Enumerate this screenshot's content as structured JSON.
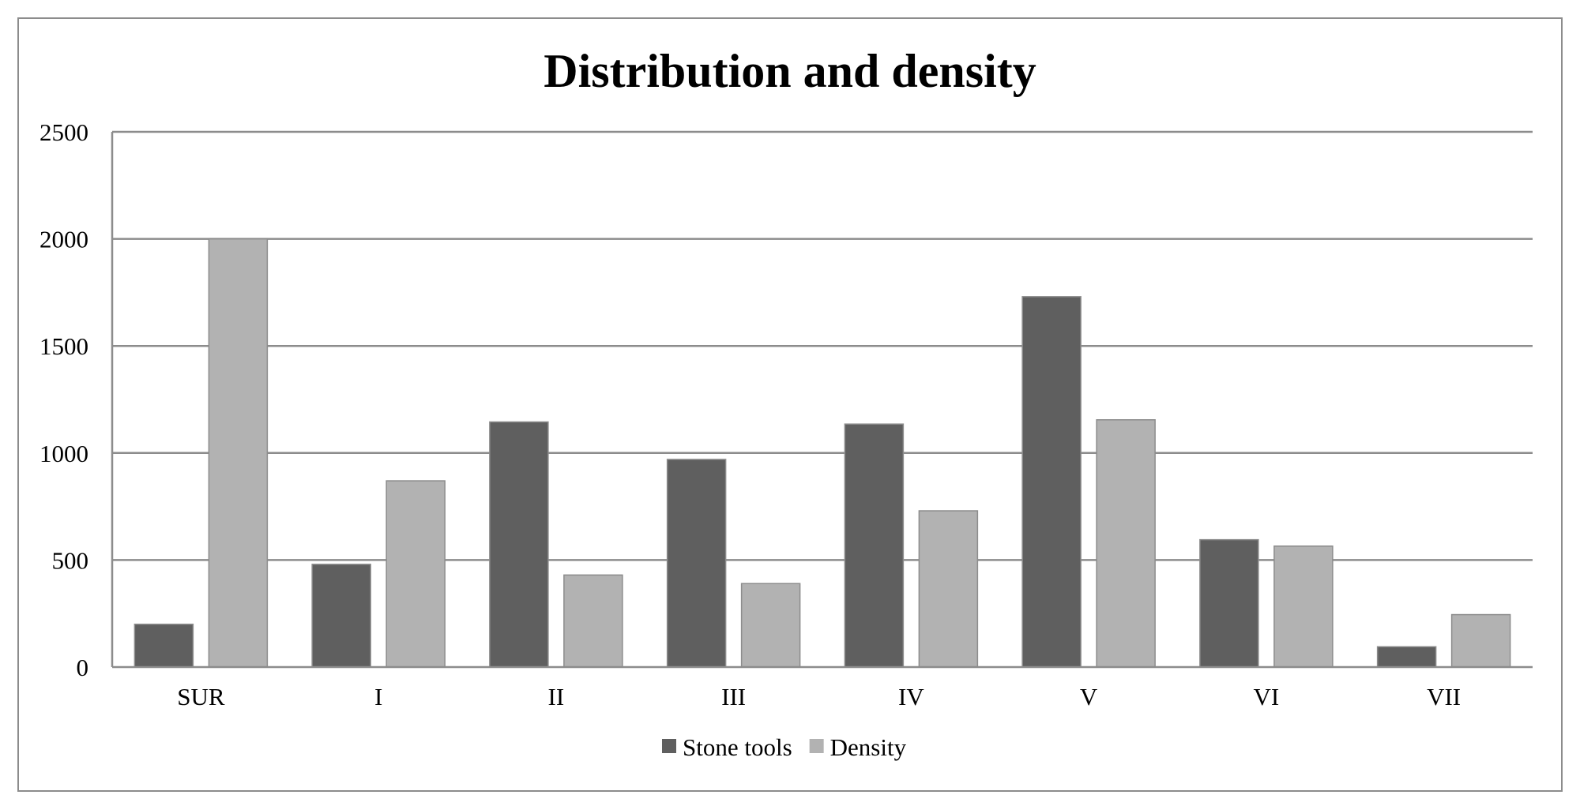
{
  "chart_data": {
    "type": "bar",
    "title": "Distribution and density",
    "xlabel": "",
    "ylabel": "",
    "categories": [
      "SUR",
      "I",
      "II",
      "III",
      "IV",
      "V",
      "VI",
      "VII"
    ],
    "series": [
      {
        "name": "Stone tools",
        "color": "#5f5f5f",
        "values": [
          200,
          480,
          1145,
          970,
          1135,
          1730,
          595,
          95
        ]
      },
      {
        "name": "Density",
        "color": "#b2b2b2",
        "values": [
          2000,
          870,
          430,
          390,
          730,
          1155,
          565,
          245
        ]
      }
    ],
    "ylim": [
      0,
      2500
    ],
    "yticks": [
      "0",
      "500",
      "1000",
      "1500",
      "2000",
      "2500"
    ],
    "ytick_values": [
      0,
      500,
      1000,
      1500,
      2000,
      2500
    ],
    "grid": true,
    "legend_position": "bottom"
  }
}
